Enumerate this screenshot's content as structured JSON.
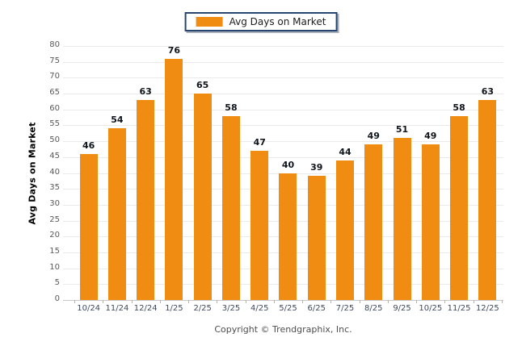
{
  "chart_data": {
    "type": "bar",
    "title": "",
    "legend": [
      "Avg Days on Market"
    ],
    "categories": [
      "10/24",
      "11/24",
      "12/24",
      "1/25",
      "2/25",
      "3/25",
      "4/25",
      "5/25",
      "6/25",
      "7/25",
      "8/25",
      "9/25",
      "10/25",
      "11/25",
      "12/25"
    ],
    "values": [
      46,
      54,
      63,
      76,
      65,
      58,
      47,
      40,
      39,
      44,
      49,
      51,
      49,
      58,
      63
    ],
    "xlabel": "",
    "ylabel": "Avg Days on Market",
    "ylim": [
      0,
      80
    ],
    "ystep": 5,
    "grid": true,
    "legend_position": "top-center",
    "bar_color": "#F08C12",
    "footer": "Copyright © Trendgraphix, Inc."
  }
}
